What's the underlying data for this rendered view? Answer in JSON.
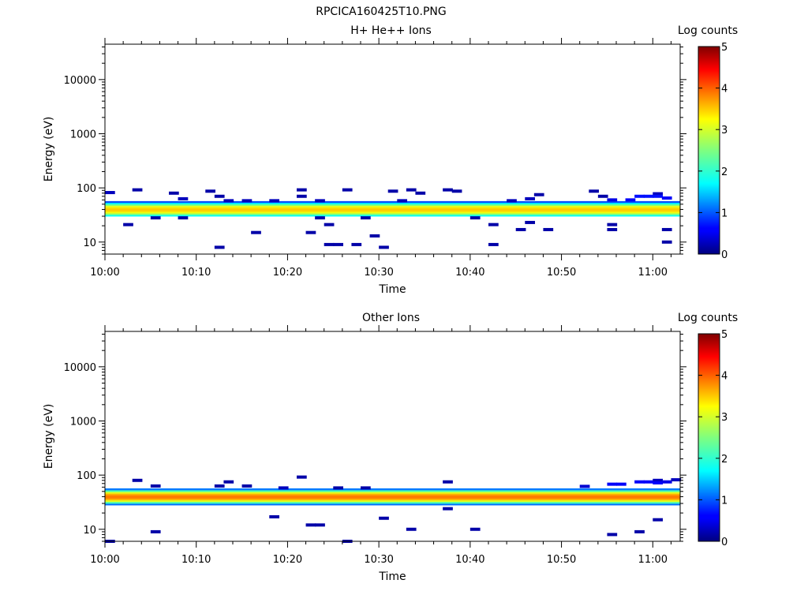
{
  "figure_title": "RPCICA160425T10.PNG",
  "chart_data": [
    {
      "type": "heatmap",
      "title": "H+ He++ Ions",
      "xlabel": "Time",
      "ylabel": "Energy (eV)",
      "x_ticks": [
        "10:00",
        "10:10",
        "10:20",
        "10:30",
        "10:40",
        "10:50",
        "11:00"
      ],
      "xlim": [
        "10:00",
        "11:03"
      ],
      "y_scale": "log",
      "y_ticks": [
        "10",
        "100",
        "1000",
        "10000"
      ],
      "ylim": [
        6,
        45000
      ],
      "colorbar": {
        "label": "Log counts",
        "ticks": [
          "0",
          "1",
          "2",
          "3",
          "4",
          "5"
        ],
        "range": [
          0,
          5
        ]
      },
      "band": {
        "low_eV": 30,
        "high_eV": 57,
        "peak_log": 3.4,
        "peak_eV": 40
      },
      "scatter": [
        {
          "t": "10:00",
          "e": 82,
          "v": 0.3
        },
        {
          "t": "10:02",
          "e": 21,
          "v": 0.2
        },
        {
          "t": "10:03",
          "e": 92,
          "v": 0.2
        },
        {
          "t": "10:05",
          "e": 28,
          "v": 0.2
        },
        {
          "t": "10:07",
          "e": 80,
          "v": 0.2
        },
        {
          "t": "10:08",
          "e": 63,
          "v": 0.3
        },
        {
          "t": "10:08",
          "e": 28,
          "v": 0.2
        },
        {
          "t": "10:11",
          "e": 87,
          "v": 0.2
        },
        {
          "t": "10:12",
          "e": 70,
          "v": 0.2
        },
        {
          "t": "10:12",
          "e": 8,
          "v": 0.2
        },
        {
          "t": "10:13",
          "e": 58,
          "v": 0.3
        },
        {
          "t": "10:15",
          "e": 58,
          "v": 0.3
        },
        {
          "t": "10:16",
          "e": 15,
          "v": 0.2
        },
        {
          "t": "10:18",
          "e": 58,
          "v": 0.3
        },
        {
          "t": "10:21",
          "e": 92,
          "v": 0.2
        },
        {
          "t": "10:21",
          "e": 70,
          "v": 0.2
        },
        {
          "t": "10:22",
          "e": 15,
          "v": 0.2
        },
        {
          "t": "10:23",
          "e": 58,
          "v": 0.3
        },
        {
          "t": "10:23",
          "e": 28,
          "v": 0.2
        },
        {
          "t": "10:24",
          "e": 21,
          "v": 0.2
        },
        {
          "t": "10:24",
          "e": 9,
          "v": 0.2
        },
        {
          "t": "10:25",
          "e": 9,
          "v": 0.2
        },
        {
          "t": "10:26",
          "e": 92,
          "v": 0.2
        },
        {
          "t": "10:27",
          "e": 9,
          "v": 0.2
        },
        {
          "t": "10:28",
          "e": 28,
          "v": 0.2
        },
        {
          "t": "10:29",
          "e": 13,
          "v": 0.2
        },
        {
          "t": "10:30",
          "e": 8,
          "v": 0.2
        },
        {
          "t": "10:31",
          "e": 87,
          "v": 0.2
        },
        {
          "t": "10:32",
          "e": 58,
          "v": 0.3
        },
        {
          "t": "10:33",
          "e": 92,
          "v": 0.2
        },
        {
          "t": "10:34",
          "e": 80,
          "v": 0.2
        },
        {
          "t": "10:37",
          "e": 92,
          "v": 0.2
        },
        {
          "t": "10:38",
          "e": 87,
          "v": 0.2
        },
        {
          "t": "10:40",
          "e": 28,
          "v": 0.2
        },
        {
          "t": "10:42",
          "e": 21,
          "v": 0.2
        },
        {
          "t": "10:42",
          "e": 9,
          "v": 0.2
        },
        {
          "t": "10:44",
          "e": 58,
          "v": 0.3
        },
        {
          "t": "10:45",
          "e": 17,
          "v": 0.2
        },
        {
          "t": "10:46",
          "e": 63,
          "v": 0.3
        },
        {
          "t": "10:46",
          "e": 23,
          "v": 0.2
        },
        {
          "t": "10:47",
          "e": 75,
          "v": 0.2
        },
        {
          "t": "10:48",
          "e": 17,
          "v": 0.2
        },
        {
          "t": "10:53",
          "e": 87,
          "v": 0.2
        },
        {
          "t": "10:54",
          "e": 70,
          "v": 0.2
        },
        {
          "t": "10:55",
          "e": 21,
          "v": 0.2
        },
        {
          "t": "10:55",
          "e": 17,
          "v": 0.2
        },
        {
          "t": "10:55",
          "e": 60,
          "v": 0.5
        },
        {
          "t": "10:57",
          "e": 60,
          "v": 0.6
        },
        {
          "t": "10:58",
          "e": 70,
          "v": 0.7
        },
        {
          "t": "10:59",
          "e": 70,
          "v": 0.7
        },
        {
          "t": "11:00",
          "e": 78,
          "v": 0.3
        },
        {
          "t": "11:00",
          "e": 70,
          "v": 0.7
        },
        {
          "t": "11:01",
          "e": 65,
          "v": 0.6
        },
        {
          "t": "11:01",
          "e": 17,
          "v": 0.2
        },
        {
          "t": "11:01",
          "e": 10,
          "v": 0.2
        }
      ]
    },
    {
      "type": "heatmap",
      "title": "Other Ions",
      "xlabel": "Time",
      "ylabel": "Energy (eV)",
      "x_ticks": [
        "10:00",
        "10:10",
        "10:20",
        "10:30",
        "10:40",
        "10:50",
        "11:00"
      ],
      "xlim": [
        "10:00",
        "11:03"
      ],
      "y_scale": "log",
      "y_ticks": [
        "10",
        "100",
        "1000",
        "10000"
      ],
      "ylim": [
        6,
        45000
      ],
      "colorbar": {
        "label": "Log counts",
        "ticks": [
          "0",
          "1",
          "2",
          "3",
          "4",
          "5"
        ],
        "range": [
          0,
          5
        ]
      },
      "band": {
        "low_eV": 28,
        "high_eV": 57,
        "peak_log": 3.8,
        "peak_eV": 40
      },
      "scatter": [
        {
          "t": "10:00",
          "e": 6,
          "v": 0.2
        },
        {
          "t": "10:03",
          "e": 80,
          "v": 0.2
        },
        {
          "t": "10:05",
          "e": 63,
          "v": 0.2
        },
        {
          "t": "10:05",
          "e": 9,
          "v": 0.2
        },
        {
          "t": "10:12",
          "e": 63,
          "v": 0.2
        },
        {
          "t": "10:13",
          "e": 75,
          "v": 0.2
        },
        {
          "t": "10:15",
          "e": 63,
          "v": 0.2
        },
        {
          "t": "10:18",
          "e": 17,
          "v": 0.2
        },
        {
          "t": "10:19",
          "e": 58,
          "v": 0.3
        },
        {
          "t": "10:21",
          "e": 92,
          "v": 0.2
        },
        {
          "t": "10:22",
          "e": 12,
          "v": 0.2
        },
        {
          "t": "10:23",
          "e": 12,
          "v": 0.2
        },
        {
          "t": "10:25",
          "e": 58,
          "v": 0.2
        },
        {
          "t": "10:26",
          "e": 6,
          "v": 0.2
        },
        {
          "t": "10:28",
          "e": 58,
          "v": 0.2
        },
        {
          "t": "10:30",
          "e": 16,
          "v": 0.2
        },
        {
          "t": "10:33",
          "e": 10,
          "v": 0.2
        },
        {
          "t": "10:37",
          "e": 75,
          "v": 0.2
        },
        {
          "t": "10:37",
          "e": 24,
          "v": 0.2
        },
        {
          "t": "10:40",
          "e": 10,
          "v": 0.2
        },
        {
          "t": "10:52",
          "e": 62,
          "v": 0.4
        },
        {
          "t": "10:55",
          "e": 68,
          "v": 0.6
        },
        {
          "t": "10:56",
          "e": 68,
          "v": 0.6
        },
        {
          "t": "10:55",
          "e": 8,
          "v": 0.2
        },
        {
          "t": "10:58",
          "e": 75,
          "v": 0.6
        },
        {
          "t": "10:58",
          "e": 9,
          "v": 0.2
        },
        {
          "t": "10:59",
          "e": 75,
          "v": 0.6
        },
        {
          "t": "11:00",
          "e": 80,
          "v": 0.3
        },
        {
          "t": "11:00",
          "e": 72,
          "v": 0.6
        },
        {
          "t": "11:00",
          "e": 15,
          "v": 0.2
        },
        {
          "t": "11:01",
          "e": 75,
          "v": 0.5
        },
        {
          "t": "11:02",
          "e": 82,
          "v": 0.3
        }
      ]
    }
  ]
}
